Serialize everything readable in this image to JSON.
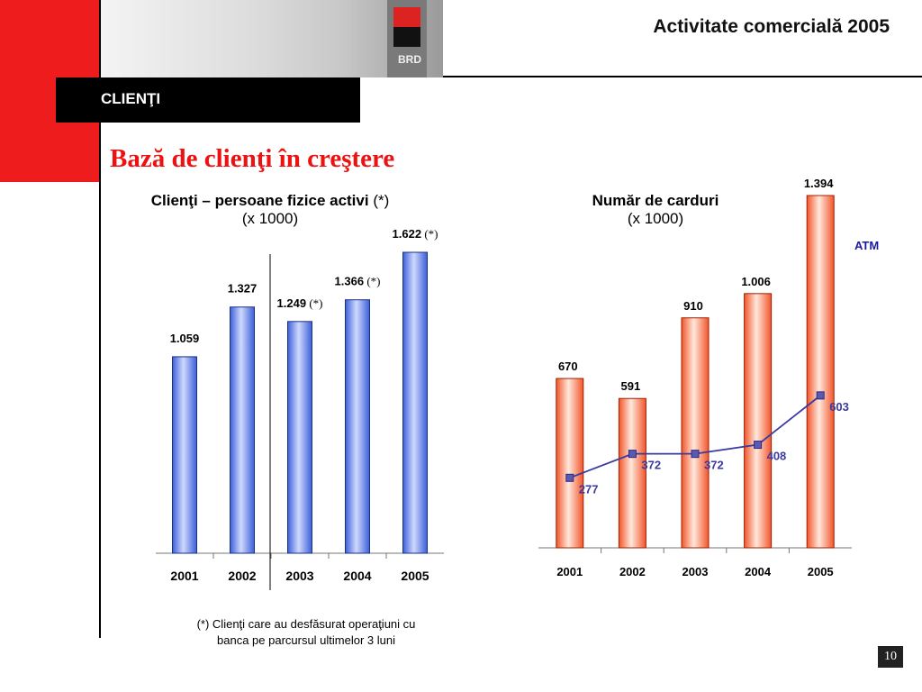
{
  "header": {
    "title": "Activitate comercială 2005",
    "logo_text": "BRD"
  },
  "section": {
    "label": "CLIENŢI"
  },
  "main_title": "Bază de clienţi în creştere",
  "chart_left": {
    "title_bold": "Clienţi – persoane fizice activi",
    "title_suffix": " (*)",
    "subtitle": "(x 1000)"
  },
  "chart_right": {
    "title_bold": "Număr de carduri",
    "subtitle": "(x 1000)"
  },
  "footnote": {
    "line1": "(*) Clienţi care au  desfăsurat operaţiuni cu",
    "line2": "banca pe parcursul ultimelor 3 luni"
  },
  "page_number": "10",
  "colors": {
    "red": "#ee1c1c",
    "bar_blue": "#4a6fe0",
    "bar_orange": "#f46a3e",
    "atm_line": "#3a3aa0"
  },
  "chart_data": [
    {
      "type": "bar",
      "categories": [
        "2001",
        "2002",
        "2003",
        "2004",
        "2005"
      ],
      "values": [
        1059,
        1327,
        1249,
        1366,
        1622
      ],
      "value_labels": [
        "1.059",
        "1.327",
        "1.249",
        "1.366",
        "1.622"
      ],
      "label_notes": [
        "",
        "",
        "(*)",
        "(*)",
        "(*)"
      ],
      "ylim": [
        0,
        1700
      ]
    },
    {
      "type": "bar",
      "categories": [
        "2001",
        "2002",
        "2003",
        "2004",
        "2005"
      ],
      "values": [
        670,
        591,
        910,
        1006,
        1394
      ],
      "value_labels": [
        "670",
        "591",
        "910",
        "1.006",
        "1.394"
      ],
      "ylim": [
        0,
        1394
      ],
      "series": [
        {
          "name": "ATM",
          "type": "line",
          "values": [
            277,
            372,
            372,
            408,
            603
          ]
        }
      ]
    }
  ]
}
